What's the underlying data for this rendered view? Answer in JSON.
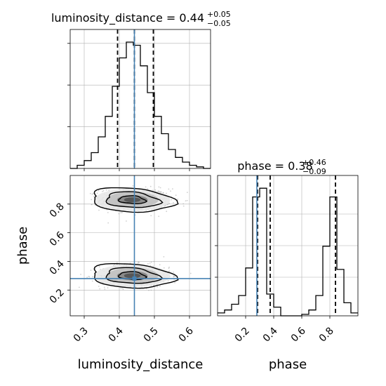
{
  "chart_data": [
    {
      "type": "histogram",
      "parameter": "luminosity_distance",
      "title": {
        "prefix": "luminosity_distance = ",
        "median": "0.44",
        "upper": "+0.05",
        "lower": "−0.05"
      },
      "xlim": [
        0.26,
        0.66
      ],
      "bin_edges": [
        0.26,
        0.28,
        0.3,
        0.32,
        0.34,
        0.36,
        0.38,
        0.4,
        0.42,
        0.44,
        0.46,
        0.48,
        0.5,
        0.52,
        0.54,
        0.56,
        0.58,
        0.6,
        0.62,
        0.64,
        0.66
      ],
      "counts": [
        0,
        2,
        5,
        10,
        20,
        33,
        52,
        70,
        80,
        78,
        65,
        48,
        33,
        22,
        12,
        7,
        4,
        2,
        1,
        0
      ],
      "quantile_lines": [
        0.395,
        0.443,
        0.497
      ],
      "truth": 0.443,
      "grid": true
    },
    {
      "type": "histogram",
      "parameter": "phase",
      "title": {
        "prefix": "phase = ",
        "median": "0.38",
        "upper": "+0.46",
        "lower": "−0.09"
      },
      "xlim": [
        0.0,
        1.0
      ],
      "xticks": [
        "0.2",
        "0.4",
        "0.6",
        "0.8"
      ],
      "bin_edges": [
        0.0,
        0.05,
        0.1,
        0.15,
        0.2,
        0.25,
        0.3,
        0.35,
        0.4,
        0.45,
        0.5,
        0.55,
        0.6,
        0.65,
        0.7,
        0.75,
        0.8,
        0.85,
        0.9,
        0.95,
        1.0
      ],
      "counts": [
        2,
        4,
        8,
        14,
        33,
        82,
        88,
        15,
        6,
        0,
        0,
        0,
        1,
        4,
        14,
        48,
        82,
        32,
        9,
        2
      ],
      "quantile_lines": [
        0.285,
        0.375,
        0.84
      ],
      "truth": 0.28,
      "grid": true
    },
    {
      "type": "scatter-contour",
      "x_parameter": "luminosity_distance",
      "y_parameter": "phase",
      "xlabel": "luminosity_distance",
      "ylabel": "phase",
      "xlim": [
        0.26,
        0.66
      ],
      "ylim": [
        0.02,
        1.0
      ],
      "xticks": [
        "0.3",
        "0.4",
        "0.5",
        "0.6"
      ],
      "yticks": [
        "0.2",
        "0.4",
        "0.6",
        "0.8"
      ],
      "modes": [
        {
          "x": 0.445,
          "y": 0.83,
          "sx": 0.045,
          "sy": 0.035,
          "weight": 0.5
        },
        {
          "x": 0.445,
          "y": 0.3,
          "sx": 0.045,
          "sy": 0.035,
          "weight": 0.5
        }
      ],
      "truth": {
        "x": 0.443,
        "y": 0.28
      },
      "grid": true
    }
  ],
  "colors": {
    "truth": "#4682b4",
    "hist": "#000000",
    "grid": "#b0b0b0",
    "points": "#a9a9a9"
  }
}
